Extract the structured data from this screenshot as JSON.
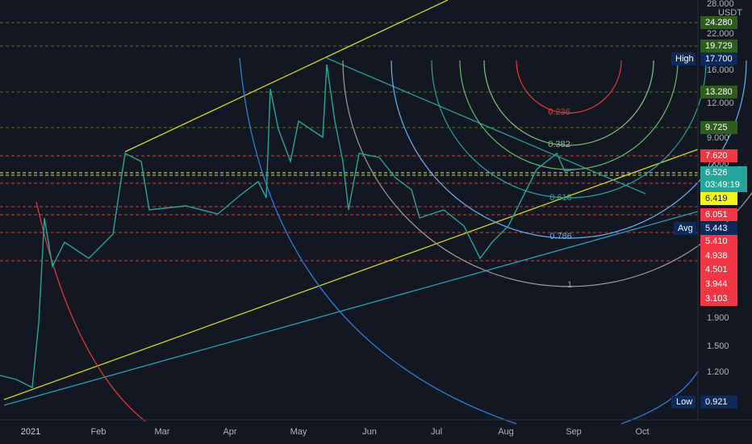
{
  "currency": "USDT",
  "price_axis": [
    "28.000",
    "22.000",
    "16.000",
    "12.000",
    "9.000",
    "7.000",
    "1.900",
    "1.500",
    "1.200"
  ],
  "badges": {
    "b1": "24.280",
    "b2": "19.729",
    "high_label": "High",
    "high": "17.700",
    "b3": "13.280",
    "b4": "9.725",
    "b5": "7.620",
    "last": "6.526",
    "countdown": "03:49:19",
    "b6": "6.419",
    "b7": "6.051",
    "avg_label": "Avg",
    "avg": "5.443",
    "b8": "5.410",
    "b9": "4.938",
    "b10": "4.501",
    "b11": "3.944",
    "b12": "3.103",
    "low_label": "Low",
    "low": "0.921"
  },
  "time_axis": [
    "2021",
    "Feb",
    "Mar",
    "Apr",
    "May",
    "Jun",
    "Jul",
    "Aug",
    "Sep",
    "Oct"
  ],
  "fib_labels": [
    "0.236",
    "0.382",
    "0.618",
    "0.786",
    "1"
  ]
}
